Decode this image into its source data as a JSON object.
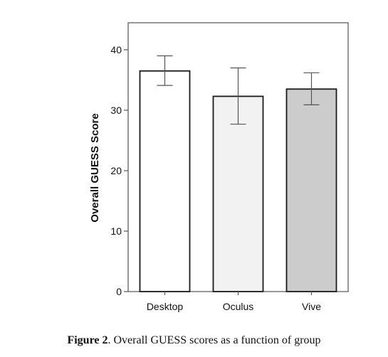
{
  "chart_data": {
    "type": "bar",
    "categories": [
      "Desktop",
      "Oculus",
      "Vive"
    ],
    "values": [
      36.5,
      32.3,
      33.5
    ],
    "error_upper": [
      39.0,
      37.0,
      36.2
    ],
    "error_lower": [
      34.1,
      27.7,
      30.9
    ],
    "bar_colors": [
      "#ffffff",
      "#f2f2f2",
      "#cccccc"
    ],
    "ylabel": "Overall GUESS Score",
    "xlabel": "",
    "ylim": [
      0,
      44
    ],
    "yticks": [
      0,
      10,
      20,
      30,
      40
    ],
    "grid": false
  },
  "caption": {
    "label": "Figure 2",
    "text": ". Overall GUESS scores as a function of group"
  }
}
